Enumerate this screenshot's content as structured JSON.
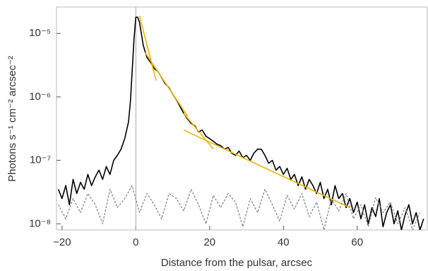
{
  "chart_data": {
    "type": "line",
    "xlabel": "Distance from the pulsar, arcsec",
    "ylabel": "Photons s⁻¹ cm⁻² arcsec⁻²",
    "log_y": true,
    "vline": 0,
    "xlim": [
      -21.5,
      79
    ],
    "xticks": [
      {
        "value": -20,
        "label": "−20"
      },
      0,
      20,
      40,
      60
    ],
    "ylim": [
      8e-09,
      2.6e-05
    ],
    "yticks": [
      {
        "value": 1e-08,
        "label": "10⁻⁸"
      },
      {
        "value": 1e-07,
        "label": "10⁻⁷"
      },
      {
        "value": 1e-06,
        "label": "10⁻⁶"
      },
      {
        "value": 1e-05,
        "label": "10⁻⁵"
      }
    ],
    "series": [
      {
        "color": "#000000",
        "style": "solid",
        "x": [
          -21,
          -20,
          -19,
          -18,
          -17,
          -16,
          -15,
          -14,
          -13,
          -12,
          -11,
          -10,
          -9,
          -8,
          -7,
          -6,
          -5,
          -4,
          -3,
          -2,
          -1.5,
          -1,
          -0.5,
          0,
          0.5,
          1,
          1.5,
          2,
          3,
          4,
          5,
          6,
          7,
          8,
          9,
          10,
          11,
          12,
          13,
          14,
          15,
          16,
          17,
          18,
          19,
          20,
          21,
          22,
          23,
          24,
          25,
          26,
          27,
          28,
          29,
          30,
          31,
          32,
          33,
          34,
          35,
          36,
          37,
          38,
          39,
          40,
          41,
          42,
          43,
          44,
          45,
          46,
          47,
          48,
          49,
          50,
          51,
          52,
          53,
          54,
          55,
          56,
          57,
          58,
          59,
          60,
          61,
          62,
          63,
          64,
          65,
          66,
          67,
          68,
          69,
          70,
          71,
          72,
          73,
          74,
          75,
          76,
          77,
          78
        ],
        "values": [
          3.5e-08,
          2.5e-08,
          4e-08,
          2e-08,
          5e-08,
          3e-08,
          4.5e-08,
          3.5e-08,
          6e-08,
          4e-08,
          5.5e-08,
          7e-08,
          5e-08,
          8e-08,
          6e-08,
          1e-07,
          1.2e-07,
          1.5e-07,
          2.2e-07,
          4e-07,
          8e-07,
          2.5e-06,
          8e-06,
          1.8e-05,
          1.8e-05,
          1.5e-05,
          1e-05,
          6.5e-06,
          4.2e-06,
          3.5e-06,
          2.8e-06,
          2.5e-06,
          2e-06,
          1.6e-06,
          1.4e-06,
          1.1e-06,
          9e-07,
          7e-07,
          5.5e-07,
          4.5e-07,
          3.8e-07,
          3.5e-07,
          2.8e-07,
          3e-07,
          2.4e-07,
          2.2e-07,
          2e-07,
          1.8e-07,
          1.7e-07,
          1.5e-07,
          1.6e-07,
          1.3e-07,
          1.2e-07,
          1.4e-07,
          1.1e-07,
          1.2e-07,
          1e-07,
          1.3e-07,
          1.5e-07,
          1.5e-07,
          1.2e-07,
          9e-08,
          1e-07,
          7e-08,
          8e-08,
          6e-08,
          7.5e-08,
          5e-08,
          6e-08,
          4e-08,
          5.5e-08,
          3.5e-08,
          5e-08,
          4e-08,
          3e-08,
          4.5e-08,
          2.5e-08,
          3.5e-08,
          2e-08,
          4e-08,
          2.5e-08,
          3e-08,
          1.8e-08,
          2.5e-08,
          1.5e-08,
          2.2e-08,
          1.2e-08,
          2e-08,
          1e-08,
          1.8e-08,
          1.3e-08,
          2.5e-08,
          9e-09,
          1.5e-08,
          2e-08,
          1e-08,
          1.6e-08,
          8e-09,
          1.4e-08,
          2e-08,
          1e-08,
          1.5e-08,
          8e-09,
          1.2e-08
        ]
      },
      {
        "color": "#888888",
        "style": "dashed",
        "x": [
          -21,
          -19,
          -17,
          -15,
          -13,
          -11,
          -9,
          -7,
          -5,
          -3,
          -1,
          1,
          3,
          5,
          7,
          9,
          11,
          13,
          15,
          17,
          19,
          21,
          23,
          25,
          27,
          29,
          31,
          33,
          35,
          37,
          39,
          41,
          43,
          45,
          47,
          49,
          51,
          53,
          55,
          57,
          59,
          61,
          63,
          65,
          67,
          69,
          71,
          73,
          75,
          77
        ],
        "values": [
          2e-08,
          1.2e-08,
          2.5e-08,
          1.5e-08,
          3e-08,
          2e-08,
          1e-08,
          3.5e-08,
          1.8e-08,
          2.5e-08,
          4e-08,
          1.5e-08,
          3e-08,
          2e-08,
          1.2e-08,
          3e-08,
          2.5e-08,
          1.6e-08,
          3.5e-08,
          2e-08,
          1e-08,
          2.8e-08,
          1.8e-08,
          3e-08,
          2.2e-08,
          9e-09,
          2.5e-08,
          1.5e-08,
          3.5e-08,
          2e-08,
          1.1e-08,
          2.8e-08,
          1.7e-08,
          3e-08,
          1.3e-08,
          2.2e-08,
          8e-09,
          2.5e-08,
          1.6e-08,
          3e-08,
          1.2e-08,
          2e-08,
          9e-09,
          2.6e-08,
          1.5e-08,
          2.2e-08,
          1e-08,
          1.8e-08,
          8e-09,
          1.5e-08
        ]
      },
      {
        "color": "#f0b400",
        "style": "solid",
        "x": [
          1,
          5.5
        ],
        "values": [
          1.9e-05,
          1.8e-06
        ]
      },
      {
        "color": "#f0b400",
        "style": "solid",
        "x": [
          2.5,
          14
        ],
        "values": [
          5e-06,
          5e-07
        ]
      },
      {
        "color": "#f0b400",
        "style": "solid",
        "x": [
          13,
          21
        ],
        "values": [
          5.5e-07,
          1.5e-07
        ]
      },
      {
        "color": "#f0b400",
        "style": "solid",
        "x": [
          13,
          58
        ],
        "values": [
          3e-07,
          1.8e-08
        ]
      }
    ]
  }
}
